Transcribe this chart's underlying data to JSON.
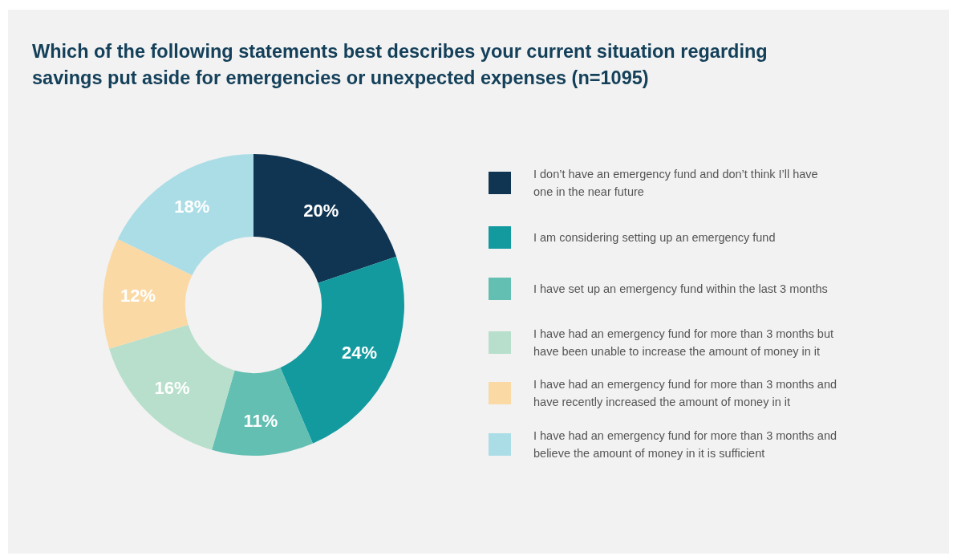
{
  "chart_data": {
    "type": "donut",
    "title": "Which of the following statements best describes your current situation regarding savings put aside for emergencies or unexpected expenses (n=1095)",
    "categories": [
      "I don’t have an emergency fund and don’t think I’ll have one in the near future",
      "I am considering setting up an emergency fund",
      "I have set up an emergency fund within the last 3 months",
      "I have had an emergency fund for more than 3 months but have been unable to increase the amount of money in it",
      "I have had an emergency fund for more than 3 months and have recently increased the amount of money in it",
      "I have had an emergency fund for more than 3 months and believe the amount of money in it is sufficient"
    ],
    "values": [
      20,
      24,
      11,
      16,
      12,
      18
    ],
    "colors": [
      "#0f3553",
      "#129a9f",
      "#62bfb2",
      "#b7dfcb",
      "#fbd9a5",
      "#abdde6"
    ],
    "value_labels": [
      "20%",
      "24%",
      "11%",
      "16%",
      "12%",
      "18%"
    ],
    "legend": "right"
  }
}
